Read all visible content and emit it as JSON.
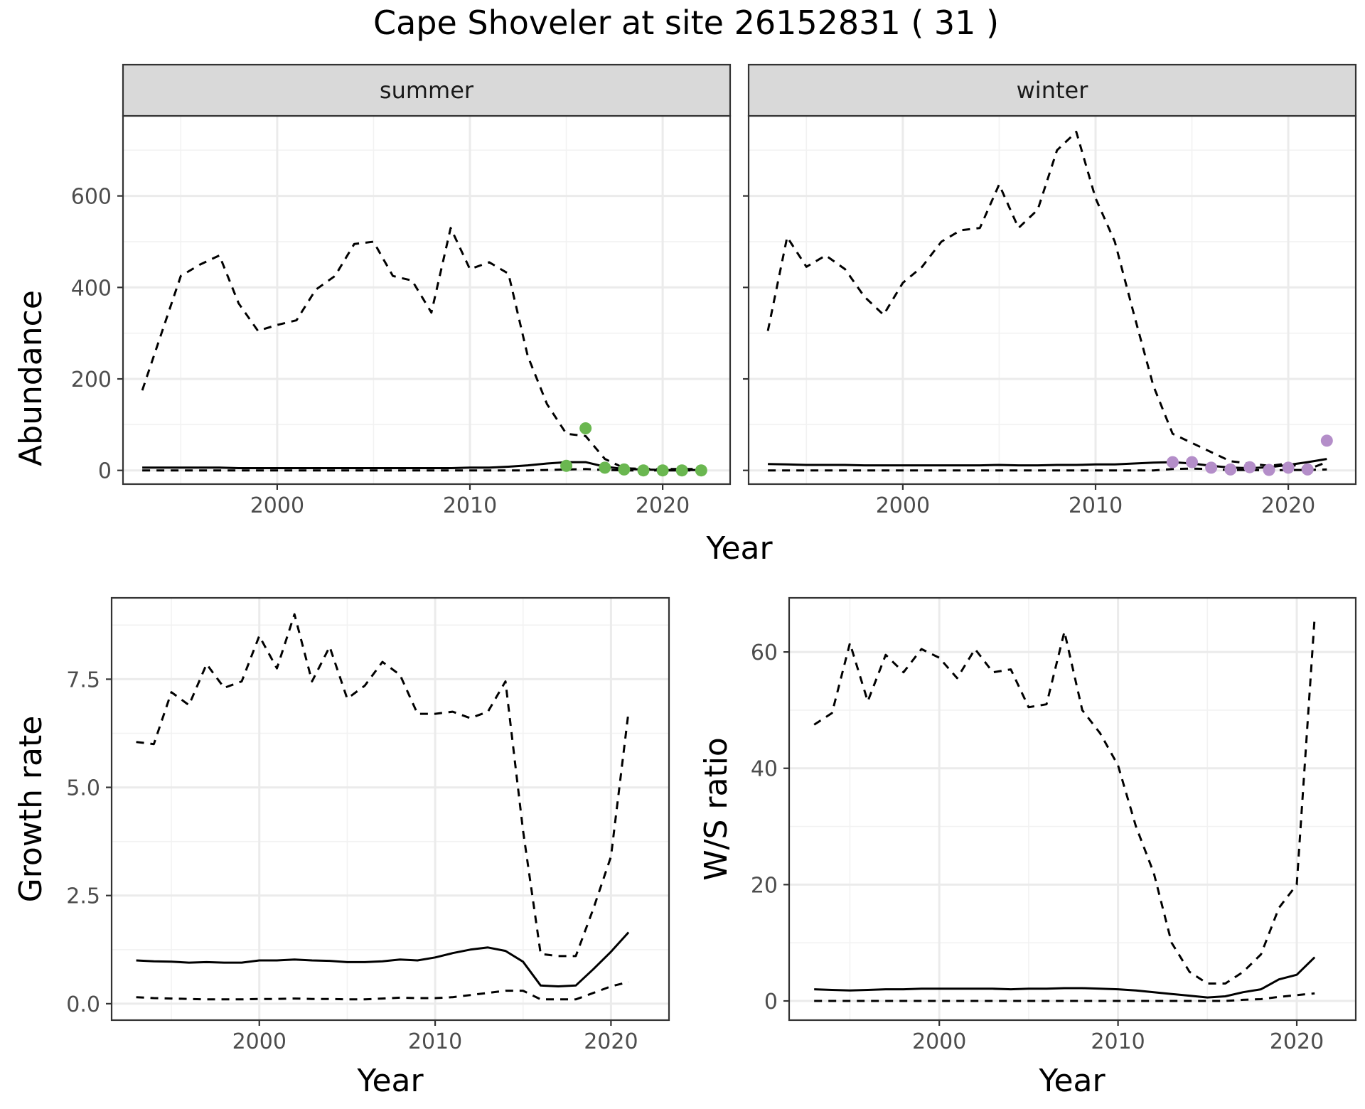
{
  "title": "Cape Shoveler at site 26152831 ( 31 )",
  "colors": {
    "summer": "#6ab750",
    "winter": "#b48ec9",
    "line": "#000000"
  },
  "chart_data": [
    {
      "type": "line",
      "facet": "summer",
      "strip_label": "summer",
      "ylabel": "Abundance",
      "xlabel": "Year",
      "xlim": [
        1992,
        2023.5
      ],
      "ylim": [
        -30,
        775
      ],
      "xticks": [
        2000,
        2010,
        2020
      ],
      "xtick_labels": [
        "2000",
        "2010",
        "2020"
      ],
      "yticks": [
        0,
        200,
        400,
        600
      ],
      "ytick_labels": [
        "0",
        "200",
        "400",
        "600"
      ],
      "grid": true,
      "series": [
        {
          "role": "upper",
          "style": "dashed",
          "x": [
            1993,
            1994,
            1995,
            1996,
            1997,
            1998,
            1999,
            2000,
            2001,
            2002,
            2003,
            2004,
            2005,
            2006,
            2007,
            2008,
            2009,
            2010,
            2011,
            2012,
            2013,
            2014,
            2015,
            2016,
            2017,
            2018,
            2019,
            2020,
            2021,
            2022
          ],
          "y": [
            175,
            300,
            425,
            450,
            470,
            365,
            305,
            318,
            328,
            395,
            425,
            495,
            500,
            425,
            415,
            345,
            530,
            440,
            455,
            430,
            250,
            145,
            80,
            75,
            25,
            5,
            3,
            3,
            3,
            3
          ]
        },
        {
          "role": "mean",
          "style": "solid",
          "x": [
            1993,
            1994,
            1995,
            1996,
            1997,
            1998,
            1999,
            2000,
            2001,
            2002,
            2003,
            2004,
            2005,
            2006,
            2007,
            2008,
            2009,
            2010,
            2011,
            2012,
            2013,
            2014,
            2015,
            2016,
            2017,
            2018,
            2019,
            2020,
            2021,
            2022
          ],
          "y": [
            6,
            6,
            6,
            6,
            6,
            5,
            5,
            5,
            5,
            5,
            5,
            5,
            5,
            5,
            5,
            5,
            5,
            6,
            6,
            8,
            11,
            15,
            18,
            18,
            8,
            3,
            2,
            1,
            1,
            1
          ]
        },
        {
          "role": "lower",
          "style": "dashed",
          "x": [
            1993,
            1994,
            1995,
            1996,
            1997,
            1998,
            1999,
            2000,
            2001,
            2002,
            2003,
            2004,
            2005,
            2006,
            2007,
            2008,
            2009,
            2010,
            2011,
            2012,
            2013,
            2014,
            2015,
            2016,
            2017,
            2018,
            2019,
            2020,
            2021,
            2022
          ],
          "y": [
            0,
            0,
            0,
            0,
            0,
            0,
            0,
            0,
            0,
            0,
            0,
            0,
            0,
            0,
            0,
            0,
            0,
            0,
            0,
            0,
            0,
            1,
            2,
            3,
            1,
            0,
            0,
            0,
            0,
            0
          ]
        },
        {
          "role": "counts",
          "style": "points",
          "x": [
            2015,
            2016,
            2017,
            2018,
            2019,
            2020,
            2021,
            2022
          ],
          "y": [
            10,
            92,
            6,
            2,
            0,
            0,
            0,
            0
          ]
        }
      ]
    },
    {
      "type": "line",
      "facet": "winter",
      "strip_label": "winter",
      "ylabel": "",
      "xlabel": "Year",
      "xlim": [
        1992,
        2023.5
      ],
      "ylim": [
        -30,
        775
      ],
      "xticks": [
        2000,
        2010,
        2020
      ],
      "xtick_labels": [
        "2000",
        "2010",
        "2020"
      ],
      "yticks": [
        0,
        200,
        400,
        600
      ],
      "ytick_labels": [],
      "grid": true,
      "series": [
        {
          "role": "upper",
          "style": "dashed",
          "x": [
            1993,
            1994,
            1995,
            1996,
            1997,
            1998,
            1999,
            2000,
            2001,
            2002,
            2003,
            2004,
            2005,
            2006,
            2007,
            2008,
            2009,
            2010,
            2011,
            2012,
            2013,
            2014,
            2015,
            2016,
            2017,
            2018,
            2019,
            2020,
            2021,
            2022
          ],
          "y": [
            305,
            510,
            445,
            470,
            440,
            380,
            340,
            410,
            445,
            500,
            525,
            530,
            625,
            530,
            570,
            700,
            740,
            595,
            500,
            340,
            185,
            80,
            60,
            40,
            20,
            15,
            10,
            15,
            2,
            18
          ]
        },
        {
          "role": "mean",
          "style": "solid",
          "x": [
            1993,
            1994,
            1995,
            1996,
            1997,
            1998,
            1999,
            2000,
            2001,
            2002,
            2003,
            2004,
            2005,
            2006,
            2007,
            2008,
            2009,
            2010,
            2011,
            2012,
            2013,
            2014,
            2015,
            2016,
            2017,
            2018,
            2019,
            2020,
            2021,
            2022
          ],
          "y": [
            14,
            13,
            12,
            12,
            12,
            11,
            11,
            11,
            11,
            11,
            11,
            11,
            12,
            11,
            11,
            12,
            12,
            13,
            13,
            15,
            17,
            18,
            15,
            10,
            6,
            5,
            7,
            12,
            18,
            25
          ]
        },
        {
          "role": "lower",
          "style": "dashed",
          "x": [
            1993,
            1994,
            1995,
            1996,
            1997,
            1998,
            1999,
            2000,
            2001,
            2002,
            2003,
            2004,
            2005,
            2006,
            2007,
            2008,
            2009,
            2010,
            2011,
            2012,
            2013,
            2014,
            2015,
            2016,
            2017,
            2018,
            2019,
            2020,
            2021,
            2022
          ],
          "y": [
            0,
            0,
            0,
            0,
            0,
            0,
            0,
            0,
            0,
            0,
            0,
            0,
            0,
            0,
            0,
            0,
            0,
            0,
            0,
            0,
            0,
            3,
            4,
            3,
            1,
            1,
            0,
            1,
            1,
            2
          ]
        },
        {
          "role": "counts",
          "style": "points",
          "x": [
            2014,
            2015,
            2016,
            2017,
            2018,
            2019,
            2020,
            2021,
            2022
          ],
          "y": [
            18,
            18,
            6,
            2,
            7,
            1,
            6,
            2,
            65
          ]
        }
      ]
    },
    {
      "type": "line",
      "facet": "growth",
      "ylabel": "Growth rate",
      "xlabel": "Year",
      "xlim": [
        1991.6,
        2023.3
      ],
      "ylim": [
        -0.38,
        9.38
      ],
      "xticks": [
        2000,
        2010,
        2020
      ],
      "xtick_labels": [
        "2000",
        "2010",
        "2020"
      ],
      "yticks": [
        0,
        2.5,
        5,
        7.5
      ],
      "ytick_labels": [
        "0.0",
        "2.5",
        "5.0",
        "7.5"
      ],
      "grid": true,
      "series": [
        {
          "role": "upper",
          "style": "dashed",
          "x": [
            1993,
            1994,
            1995,
            1996,
            1997,
            1998,
            1999,
            2000,
            2001,
            2002,
            2003,
            2004,
            2005,
            2006,
            2007,
            2008,
            2009,
            2010,
            2011,
            2012,
            2013,
            2014,
            2015,
            2016,
            2017,
            2018,
            2019,
            2020,
            2021
          ],
          "y": [
            6.05,
            6.0,
            7.2,
            6.9,
            7.85,
            7.3,
            7.45,
            8.5,
            7.75,
            9.0,
            7.45,
            8.25,
            7.05,
            7.35,
            7.9,
            7.6,
            6.7,
            6.7,
            6.75,
            6.6,
            6.75,
            7.45,
            4.0,
            1.15,
            1.1,
            1.1,
            2.2,
            3.4,
            6.75
          ]
        },
        {
          "role": "mean",
          "style": "solid",
          "x": [
            1993,
            1994,
            1995,
            1996,
            1997,
            1998,
            1999,
            2000,
            2001,
            2002,
            2003,
            2004,
            2005,
            2006,
            2007,
            2008,
            2009,
            2010,
            2011,
            2012,
            2013,
            2014,
            2015,
            2016,
            2017,
            2018,
            2019,
            2020,
            2021
          ],
          "y": [
            1.0,
            0.98,
            0.97,
            0.95,
            0.96,
            0.95,
            0.95,
            1.0,
            1.0,
            1.02,
            1.0,
            0.99,
            0.96,
            0.96,
            0.98,
            1.02,
            1.0,
            1.07,
            1.17,
            1.25,
            1.3,
            1.22,
            0.97,
            0.42,
            0.4,
            0.42,
            0.8,
            1.2,
            1.65
          ]
        },
        {
          "role": "lower",
          "style": "dashed",
          "x": [
            1993,
            1994,
            1995,
            1996,
            1997,
            1998,
            1999,
            2000,
            2001,
            2002,
            2003,
            2004,
            2005,
            2006,
            2007,
            2008,
            2009,
            2010,
            2011,
            2012,
            2013,
            2014,
            2015,
            2016,
            2017,
            2018,
            2019,
            2020,
            2021
          ],
          "y": [
            0.15,
            0.13,
            0.12,
            0.11,
            0.1,
            0.1,
            0.1,
            0.11,
            0.11,
            0.12,
            0.11,
            0.11,
            0.1,
            0.1,
            0.12,
            0.14,
            0.13,
            0.13,
            0.15,
            0.2,
            0.25,
            0.3,
            0.3,
            0.1,
            0.1,
            0.1,
            0.25,
            0.4,
            0.5
          ]
        }
      ]
    },
    {
      "type": "line",
      "facet": "ws_ratio",
      "ylabel": "W/S ratio",
      "xlabel": "Year",
      "xlim": [
        1991.6,
        2023.3
      ],
      "ylim": [
        -3.3,
        69.3
      ],
      "xticks": [
        2000,
        2010,
        2020
      ],
      "xtick_labels": [
        "2000",
        "2010",
        "2020"
      ],
      "yticks": [
        0,
        20,
        40,
        60
      ],
      "ytick_labels": [
        "0",
        "20",
        "40",
        "60"
      ],
      "grid": true,
      "series": [
        {
          "role": "upper",
          "style": "dashed",
          "x": [
            1993,
            1994,
            1995,
            1996,
            1997,
            1998,
            1999,
            2000,
            2001,
            2002,
            2003,
            2004,
            2005,
            2006,
            2007,
            2008,
            2009,
            2010,
            2011,
            2012,
            2013,
            2014,
            2015,
            2016,
            2017,
            2018,
            2019,
            2020,
            2021
          ],
          "y": [
            47.5,
            49.5,
            61.5,
            51.5,
            59.5,
            56.5,
            60.5,
            59.0,
            55.5,
            60.5,
            56.5,
            57.0,
            50.5,
            51.0,
            63.5,
            50.0,
            46.0,
            40.5,
            30.0,
            22.0,
            10.0,
            5.0,
            3.0,
            3.0,
            5.0,
            8.0,
            16.0,
            20.0,
            66.0
          ]
        },
        {
          "role": "mean",
          "style": "solid",
          "x": [
            1993,
            1994,
            1995,
            1996,
            1997,
            1998,
            1999,
            2000,
            2001,
            2002,
            2003,
            2004,
            2005,
            2006,
            2007,
            2008,
            2009,
            2010,
            2011,
            2012,
            2013,
            2014,
            2015,
            2016,
            2017,
            2018,
            2019,
            2020,
            2021
          ],
          "y": [
            2.0,
            1.9,
            1.8,
            1.9,
            2.0,
            2.0,
            2.1,
            2.1,
            2.1,
            2.1,
            2.1,
            2.0,
            2.1,
            2.1,
            2.2,
            2.2,
            2.1,
            2.0,
            1.8,
            1.5,
            1.2,
            0.9,
            0.6,
            0.8,
            1.5,
            2.0,
            3.7,
            4.5,
            7.5
          ]
        },
        {
          "role": "lower",
          "style": "dashed",
          "x": [
            1993,
            1994,
            1995,
            1996,
            1997,
            1998,
            1999,
            2000,
            2001,
            2002,
            2003,
            2004,
            2005,
            2006,
            2007,
            2008,
            2009,
            2010,
            2011,
            2012,
            2013,
            2014,
            2015,
            2016,
            2017,
            2018,
            2019,
            2020,
            2021
          ],
          "y": [
            0,
            0,
            0,
            0,
            0,
            0,
            0,
            0,
            0,
            0,
            0,
            0,
            0,
            0,
            0,
            0,
            0,
            0,
            0,
            0,
            0,
            0,
            0,
            0,
            0.2,
            0.3,
            0.7,
            1.0,
            1.3
          ]
        }
      ]
    }
  ],
  "shared_xlabel_top": "Year"
}
